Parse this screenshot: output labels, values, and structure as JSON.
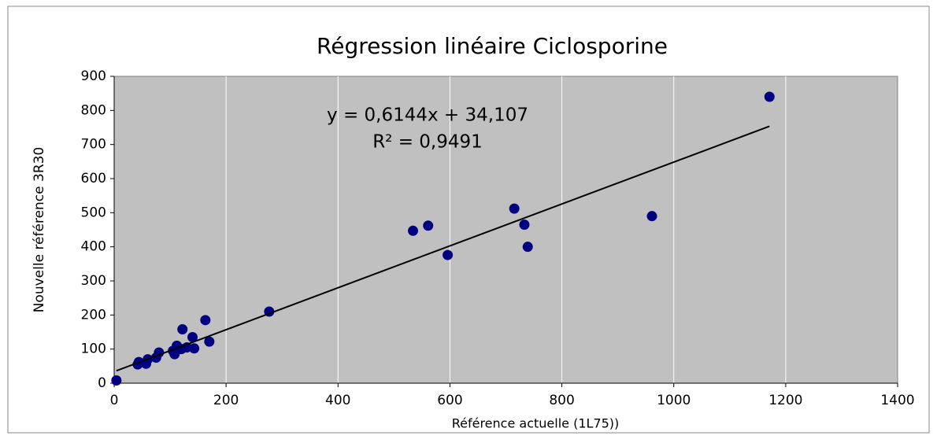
{
  "chart_data": {
    "type": "scatter",
    "title": "Régression linéaire Ciclosporine",
    "xlabel": "Référence actuelle (1L75))",
    "ylabel": "Nouvelle référence 3R30",
    "series": [
      {
        "name": "Ciclosporine",
        "color": "#000080",
        "x": [
          4,
          42,
          44,
          57,
          60,
          75,
          80,
          105,
          108,
          112,
          120,
          122,
          130,
          140,
          143,
          163,
          170,
          277,
          534,
          561,
          596,
          715,
          733,
          739,
          961,
          1171
        ],
        "values": [
          8,
          55,
          62,
          57,
          70,
          75,
          90,
          95,
          85,
          110,
          100,
          158,
          105,
          135,
          102,
          185,
          122,
          210,
          447,
          462,
          376,
          512,
          465,
          400,
          490,
          840
        ]
      }
    ],
    "trendline": {
      "slope": 0.6144,
      "intercept": 34.107,
      "label": "y = 0,6144x + 34,107",
      "r2": 0.9491,
      "r2_label": "R² = 0,9491",
      "color": "#000000"
    },
    "xlim": [
      0,
      1400
    ],
    "xticks": [
      0,
      200,
      400,
      600,
      800,
      1000,
      1200,
      1400
    ],
    "ylim": [
      0,
      900
    ],
    "yticks": [
      0,
      100,
      200,
      300,
      400,
      500,
      600,
      700,
      800,
      900
    ],
    "grid": "x",
    "plot_background": "#c0c0c0"
  }
}
